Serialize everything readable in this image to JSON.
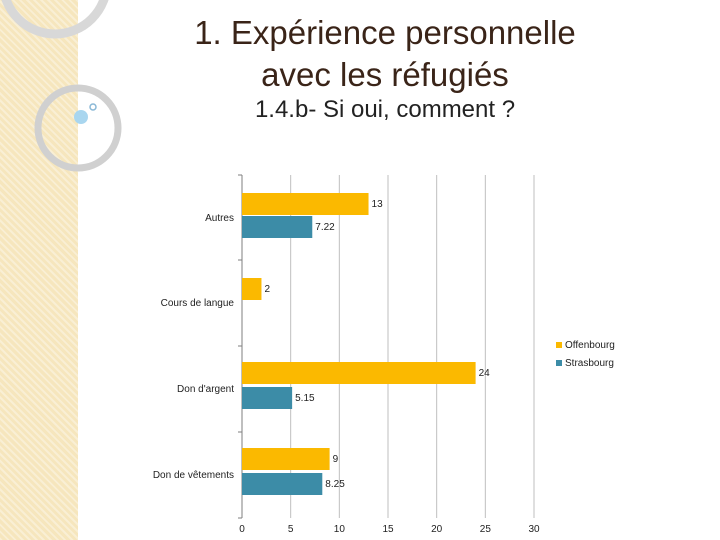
{
  "slide": {
    "title_lines": [
      "1. Expérience personnelle",
      "avec les réfugiés"
    ],
    "subtitle": "1.4.b- Si oui, comment ?"
  },
  "colors": {
    "offenbourg": "#fbb900",
    "strasbourg": "#3c8ca7"
  },
  "chart_data": {
    "type": "bar",
    "orientation": "horizontal",
    "categories": [
      "Autres",
      "Cours de langue",
      "Don d'argent",
      "Don de vêtements"
    ],
    "series": [
      {
        "name": "Offenbourg",
        "values": [
          13,
          2,
          24,
          9
        ]
      },
      {
        "name": "Strasbourg",
        "values": [
          7.22,
          null,
          5.15,
          8.25
        ]
      }
    ],
    "value_labels": {
      "Offenbourg": [
        "13",
        "2",
        "24",
        "9"
      ],
      "Strasbourg": [
        "7.22",
        "",
        "5.15",
        "8.25"
      ]
    },
    "xlim": [
      0,
      30
    ],
    "xticks": [
      "0",
      "5",
      "10",
      "15",
      "20",
      "25",
      "30"
    ],
    "grid": "vertical",
    "legend": "right"
  }
}
